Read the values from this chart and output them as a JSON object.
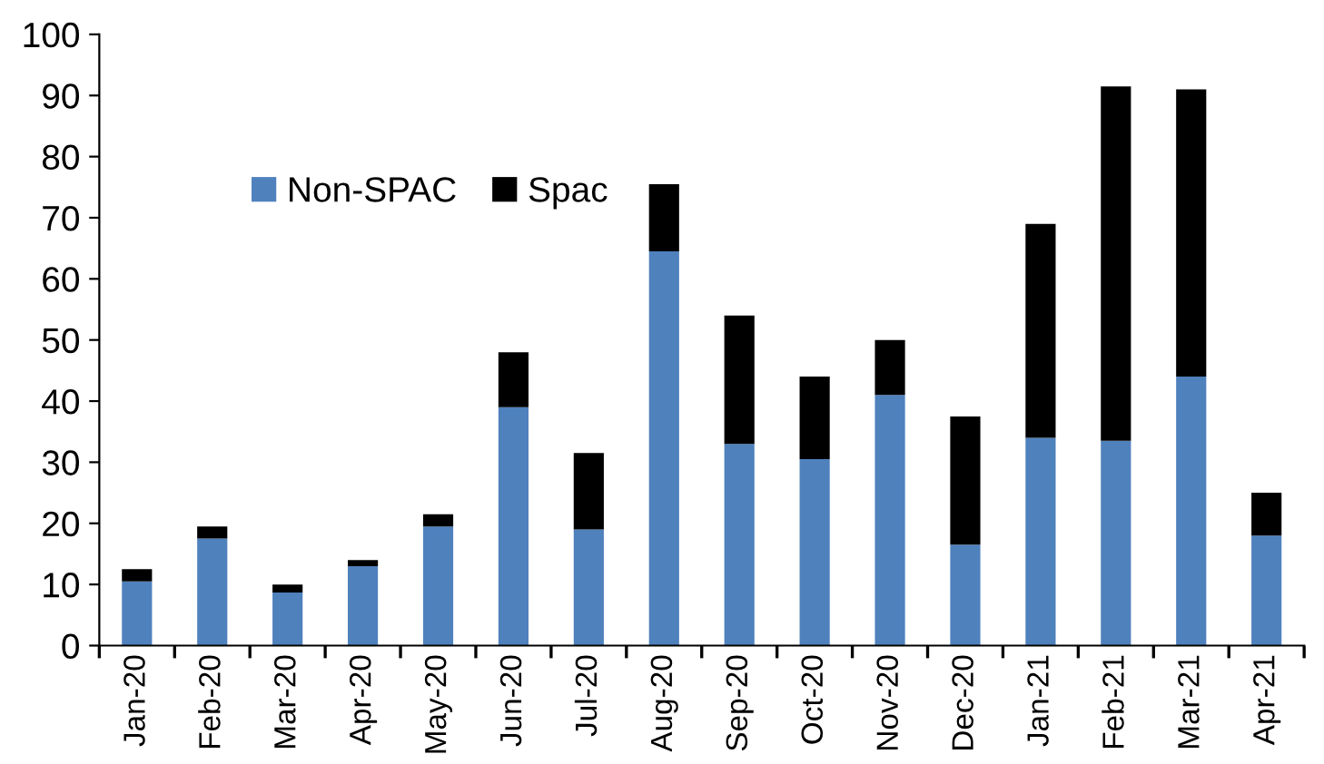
{
  "chart_data": {
    "type": "bar",
    "stacked": true,
    "categories": [
      "Jan-20",
      "Feb-20",
      "Mar-20",
      "Apr-20",
      "May-20",
      "Jun-20",
      "Jul-20",
      "Aug-20",
      "Sep-20",
      "Oct-20",
      "Nov-20",
      "Dec-20",
      "Jan-21",
      "Feb-21",
      "Mar-21",
      "Apr-21"
    ],
    "series": [
      {
        "name": "Non-SPAC",
        "color": "#4f81bd",
        "values": [
          10.5,
          17.5,
          8.7,
          13,
          19.5,
          39,
          19,
          64.5,
          33,
          30.5,
          41,
          16.5,
          34,
          33.5,
          44,
          18
        ]
      },
      {
        "name": "Spac",
        "color": "#000000",
        "values": [
          2,
          2,
          1.3,
          1,
          2,
          9,
          12.5,
          11,
          21,
          13.5,
          9,
          21,
          35,
          58,
          47,
          7
        ]
      }
    ],
    "ylim": [
      0,
      100
    ],
    "yticks": [
      0,
      10,
      20,
      30,
      40,
      50,
      60,
      70,
      80,
      90,
      100
    ],
    "grid": false,
    "legend": "top left"
  }
}
